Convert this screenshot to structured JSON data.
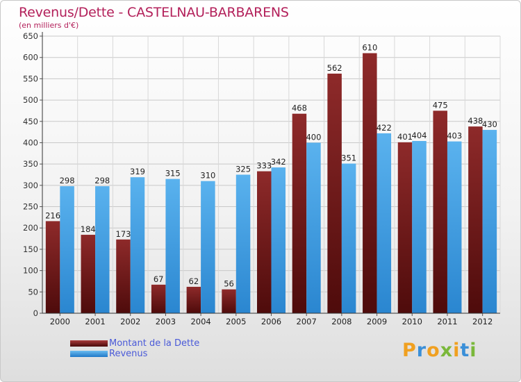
{
  "chart_data": {
    "type": "bar",
    "title": "Revenus/Dette - CASTELNAU-BARBARENS",
    "subtitle": "(en milliers d'€)",
    "categories": [
      "2000",
      "2001",
      "2002",
      "2003",
      "2004",
      "2005",
      "2006",
      "2007",
      "2008",
      "2009",
      "2010",
      "2011",
      "2012"
    ],
    "series": [
      {
        "name": "Montant de la Dette",
        "color": "#7b1c1c",
        "values": [
          216,
          184,
          173,
          67,
          62,
          56,
          333,
          468,
          562,
          610,
          401,
          475,
          438
        ]
      },
      {
        "name": "Revenus",
        "color": "#3a9ce0",
        "values": [
          298,
          298,
          319,
          315,
          310,
          325,
          342,
          400,
          351,
          422,
          404,
          403,
          430
        ]
      }
    ],
    "ylim": [
      0,
      650
    ],
    "yticks": [
      0,
      50,
      100,
      150,
      200,
      250,
      300,
      350,
      400,
      450,
      500,
      550,
      600,
      650
    ],
    "grid": true,
    "legend": "bottom-left"
  },
  "logo": {
    "text": "Proxiti"
  }
}
